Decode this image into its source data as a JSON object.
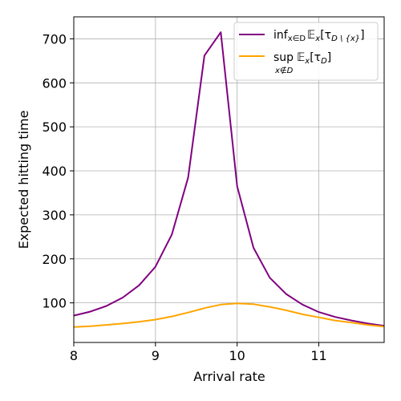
{
  "chart_data": {
    "type": "line",
    "xlabel": "Arrival rate",
    "ylabel": "Expected hitting time",
    "xlim": [
      8.0,
      11.8
    ],
    "ylim": [
      10,
      750
    ],
    "xticks": [
      8,
      9,
      10,
      11
    ],
    "yticks": [
      100,
      200,
      300,
      400,
      500,
      600,
      700
    ],
    "grid": true,
    "legend_position": "top-right",
    "x": [
      8.0,
      8.2,
      8.4,
      8.6,
      8.8,
      9.0,
      9.2,
      9.4,
      9.6,
      9.8,
      10.0,
      10.2,
      10.4,
      10.6,
      10.8,
      11.0,
      11.2,
      11.4,
      11.6,
      11.8
    ],
    "series": [
      {
        "name_main": "inf",
        "name_sub": "x∈D",
        "name_rest": "𝔼",
        "name_rest_sub": "x",
        "name_tail": "[τ",
        "name_tail_sub": "D \\ {x}",
        "name_end": "]",
        "color": "#800080",
        "values": [
          71,
          80,
          93,
          112,
          140,
          182,
          255,
          385,
          662,
          715,
          365,
          225,
          157,
          120,
          96,
          79,
          68,
          60,
          53,
          48
        ]
      },
      {
        "name_main": "sup",
        "name_under": "x∉D",
        "name_rest": "𝔼",
        "name_rest_sub": "x",
        "name_tail": "[τ",
        "name_tail_sub": "D",
        "name_end": "]",
        "color": "#ffa500",
        "values": [
          45,
          47,
          50,
          53,
          57,
          62,
          69,
          78,
          88,
          96,
          99,
          97,
          91,
          83,
          74,
          67,
          60,
          55,
          50,
          46
        ]
      }
    ]
  }
}
